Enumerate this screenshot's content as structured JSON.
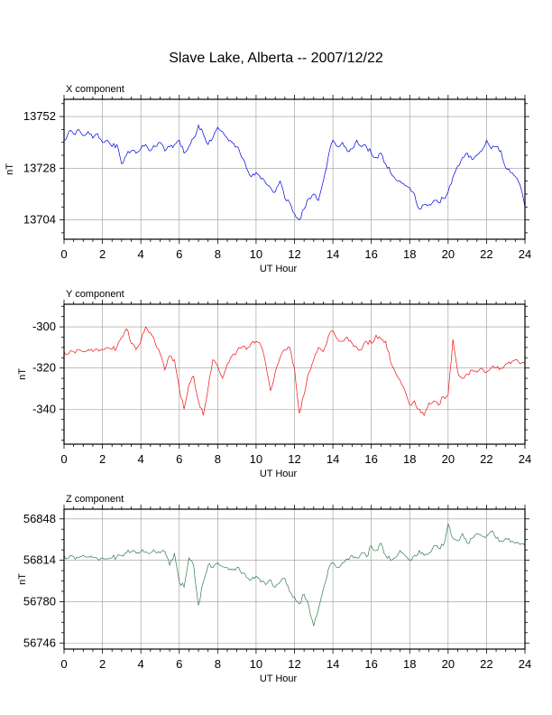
{
  "title": "Slave Lake, Alberta -- 2007/12/22",
  "chart_data": [
    {
      "type": "line",
      "title": "X component",
      "xlabel": "UT Hour",
      "ylabel": "nT",
      "xlim": [
        0,
        24
      ],
      "ylim": [
        13695,
        13760
      ],
      "xticks": [
        "0",
        "2",
        "4",
        "6",
        "8",
        "10",
        "12",
        "14",
        "16",
        "18",
        "20",
        "22",
        "24"
      ],
      "yticks": [
        "13704",
        "13728",
        "13752"
      ],
      "grid": true,
      "color": "#0000dd",
      "series": [
        {
          "x": [
            0,
            0.25,
            0.5,
            0.75,
            1,
            1.25,
            1.5,
            1.75,
            2,
            2.25,
            2.5,
            2.75,
            3,
            3.25,
            3.5,
            3.75,
            4,
            4.25,
            4.5,
            4.75,
            5,
            5.25,
            5.5,
            5.75,
            6,
            6.25,
            6.5,
            6.75,
            7,
            7.25,
            7.5,
            7.75,
            8,
            8.25,
            8.5,
            8.75,
            9,
            9.25,
            9.5,
            9.75,
            10,
            10.25,
            10.5,
            10.75,
            11,
            11.25,
            11.5,
            11.75,
            12,
            12.25,
            12.5,
            12.75,
            13,
            13.25,
            13.5,
            13.75,
            14,
            14.25,
            14.5,
            14.75,
            15,
            15.25,
            15.5,
            15.75,
            16,
            16.25,
            16.5,
            16.75,
            17,
            17.25,
            17.5,
            17.75,
            18,
            18.25,
            18.5,
            18.75,
            19,
            19.25,
            19.5,
            19.75,
            20,
            20.25,
            20.5,
            20.75,
            21,
            21.25,
            21.5,
            21.75,
            22,
            22.25,
            22.5,
            22.75,
            23,
            23.25,
            23.5,
            23.75,
            24
          ],
          "values": [
            13741,
            13745,
            13744,
            13746,
            13743,
            13745,
            13742,
            13744,
            13740,
            13741,
            13738,
            13739,
            13730,
            13734,
            13736,
            13735,
            13737,
            13739,
            13736,
            13738,
            13740,
            13736,
            13738,
            13739,
            13741,
            13735,
            13738,
            13742,
            13748,
            13744,
            13739,
            13742,
            13747,
            13745,
            13742,
            13740,
            13738,
            13733,
            13728,
            13724,
            13726,
            13723,
            13721,
            13719,
            13717,
            13722,
            13714,
            13712,
            13707,
            13704,
            13709,
            13714,
            13716,
            13713,
            13722,
            13733,
            13741,
            13738,
            13740,
            13736,
            13737,
            13741,
            13738,
            13738,
            13735,
            13733,
            13735,
            13730,
            13726,
            13723,
            13722,
            13720,
            13719,
            13716,
            13709,
            13711,
            13711,
            13713,
            13712,
            13714,
            13717,
            13724,
            13729,
            13733,
            13735,
            13732,
            13734,
            13736,
            13741,
            13737,
            13738,
            13736,
            13728,
            13726,
            13724,
            13720,
            13710
          ]
        }
      ]
    },
    {
      "type": "line",
      "title": "Y component",
      "xlabel": "UT Hour",
      "ylabel": "nT",
      "xlim": [
        0,
        24
      ],
      "ylim": [
        -357,
        -289
      ],
      "xticks": [
        "0",
        "2",
        "4",
        "6",
        "8",
        "10",
        "12",
        "14",
        "16",
        "18",
        "20",
        "22",
        "24"
      ],
      "yticks": [
        "-340",
        "-320",
        "-300"
      ],
      "grid": true,
      "color": "#ee1111",
      "series": [
        {
          "x": [
            0,
            0.25,
            0.5,
            0.75,
            1,
            1.25,
            1.5,
            1.75,
            2,
            2.25,
            2.5,
            2.75,
            3,
            3.25,
            3.5,
            3.75,
            4,
            4.25,
            4.5,
            4.75,
            5,
            5.25,
            5.5,
            5.75,
            6,
            6.25,
            6.5,
            6.75,
            7,
            7.25,
            7.5,
            7.75,
            8,
            8.25,
            8.5,
            8.75,
            9,
            9.25,
            9.5,
            9.75,
            10,
            10.25,
            10.5,
            10.75,
            11,
            11.25,
            11.5,
            11.75,
            12,
            12.25,
            12.5,
            12.75,
            13,
            13.25,
            13.5,
            13.75,
            14,
            14.25,
            14.5,
            14.75,
            15,
            15.25,
            15.5,
            15.75,
            16,
            16.25,
            16.5,
            16.75,
            17,
            17.25,
            17.5,
            17.75,
            18,
            18.25,
            18.5,
            18.75,
            19,
            19.25,
            19.5,
            19.75,
            20,
            20.25,
            20.5,
            20.75,
            21,
            21.25,
            21.5,
            21.75,
            22,
            22.25,
            22.5,
            22.75,
            23,
            23.25,
            23.5,
            23.75,
            24
          ],
          "values": [
            -312,
            -313,
            -312,
            -311,
            -312,
            -311,
            -312,
            -311,
            -311,
            -310,
            -311,
            -310,
            -305,
            -301,
            -308,
            -311,
            -307,
            -300,
            -303,
            -308,
            -313,
            -321,
            -314,
            -316,
            -330,
            -340,
            -328,
            -324,
            -336,
            -343,
            -330,
            -316,
            -319,
            -325,
            -318,
            -314,
            -312,
            -310,
            -311,
            -308,
            -307,
            -309,
            -318,
            -331,
            -322,
            -315,
            -311,
            -310,
            -320,
            -342,
            -333,
            -322,
            -316,
            -310,
            -312,
            -305,
            -302,
            -306,
            -307,
            -305,
            -308,
            -310,
            -311,
            -307,
            -308,
            -304,
            -306,
            -307,
            -317,
            -322,
            -326,
            -331,
            -338,
            -336,
            -340,
            -343,
            -337,
            -336,
            -338,
            -334,
            -333,
            -306,
            -322,
            -325,
            -323,
            -321,
            -322,
            -320,
            -322,
            -320,
            -320,
            -320,
            -318,
            -318,
            -316,
            -318,
            -318
          ]
        }
      ]
    },
    {
      "type": "line",
      "title": "Z component",
      "xlabel": "UT Hour",
      "ylabel": "nT",
      "xlim": [
        0,
        24
      ],
      "ylim": [
        56741,
        56856
      ],
      "xticks": [
        "0",
        "2",
        "4",
        "6",
        "8",
        "10",
        "12",
        "14",
        "16",
        "18",
        "20",
        "22",
        "24"
      ],
      "yticks": [
        "56746",
        "56780",
        "56814",
        "56848"
      ],
      "grid": true,
      "color": "#2e7d4f",
      "series": [
        {
          "x": [
            0,
            0.25,
            0.5,
            0.75,
            1,
            1.25,
            1.5,
            1.75,
            2,
            2.25,
            2.5,
            2.75,
            3,
            3.25,
            3.5,
            3.75,
            4,
            4.25,
            4.5,
            4.75,
            5,
            5.25,
            5.5,
            5.75,
            6,
            6.25,
            6.5,
            6.75,
            7,
            7.25,
            7.5,
            7.75,
            8,
            8.25,
            8.5,
            8.75,
            9,
            9.25,
            9.5,
            9.75,
            10,
            10.25,
            10.5,
            10.75,
            11,
            11.25,
            11.5,
            11.75,
            12,
            12.25,
            12.5,
            12.75,
            13,
            13.25,
            13.5,
            13.75,
            14,
            14.25,
            14.5,
            14.75,
            15,
            15.25,
            15.5,
            15.75,
            16,
            16.25,
            16.5,
            16.75,
            17,
            17.25,
            17.5,
            17.75,
            18,
            18.25,
            18.5,
            18.75,
            19,
            19.25,
            19.5,
            19.75,
            20,
            20.25,
            20.5,
            20.75,
            21,
            21.25,
            21.5,
            21.75,
            22,
            22.25,
            22.5,
            22.75,
            23,
            23.25,
            23.5,
            23.75,
            24
          ],
          "values": [
            56818,
            56816,
            56817,
            56816,
            56818,
            56817,
            56816,
            56815,
            56816,
            56815,
            56816,
            56817,
            56818,
            56820,
            56821,
            56820,
            56821,
            56821,
            56820,
            56821,
            56820,
            56821,
            56810,
            56820,
            56796,
            56792,
            56816,
            56810,
            56777,
            56796,
            56810,
            56808,
            56812,
            56809,
            56808,
            56806,
            56808,
            56803,
            56800,
            56798,
            56801,
            56796,
            56794,
            56798,
            56792,
            56796,
            56799,
            56788,
            56784,
            56778,
            56786,
            56776,
            56760,
            56774,
            56790,
            56806,
            56812,
            56808,
            56812,
            56815,
            56818,
            56816,
            56820,
            56817,
            56826,
            56822,
            56828,
            56818,
            56814,
            56816,
            56822,
            56818,
            56814,
            56818,
            56822,
            56818,
            56820,
            56826,
            56824,
            56826,
            56844,
            56832,
            56830,
            56836,
            56828,
            56832,
            56836,
            56834,
            56834,
            56838,
            56832,
            56830,
            56832,
            56829,
            56828,
            56827,
            56826
          ]
        }
      ]
    }
  ]
}
